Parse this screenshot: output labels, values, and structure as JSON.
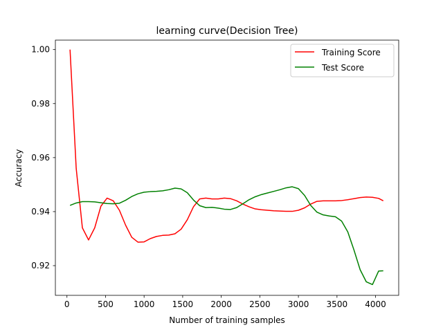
{
  "chart_data": {
    "type": "line",
    "title": "learning curve(Decision Tree)",
    "xlabel": "Number of training samples",
    "ylabel": "Accuracy",
    "xlim": [
      -150,
      4300
    ],
    "ylim": [
      0.909,
      1.0035
    ],
    "xticks": [
      0,
      500,
      1000,
      1500,
      2000,
      2500,
      3000,
      3500,
      4000
    ],
    "yticks": [
      0.92,
      0.94,
      0.96,
      0.98,
      1.0
    ],
    "ytick_labels": [
      "0.92",
      "0.94",
      "0.96",
      "0.98",
      "1.00"
    ],
    "grid": false,
    "legend_position": "top-right",
    "series": [
      {
        "name": "Training Score",
        "color": "#ff0000",
        "x": [
          40,
          120,
          200,
          280,
          360,
          440,
          520,
          600,
          680,
          760,
          840,
          920,
          1000,
          1080,
          1160,
          1240,
          1320,
          1400,
          1480,
          1560,
          1640,
          1720,
          1800,
          1880,
          1960,
          2040,
          2120,
          2200,
          2280,
          2360,
          2440,
          2520,
          2600,
          2680,
          2760,
          2840,
          2920,
          3000,
          3080,
          3160,
          3240,
          3320,
          3400,
          3480,
          3560,
          3640,
          3720,
          3800,
          3880,
          3960,
          4040,
          4100
        ],
        "y": [
          1.0,
          0.956,
          0.934,
          0.9295,
          0.934,
          0.942,
          0.945,
          0.944,
          0.9405,
          0.935,
          0.9305,
          0.9287,
          0.9288,
          0.93,
          0.9308,
          0.9312,
          0.9313,
          0.9318,
          0.9335,
          0.937,
          0.9418,
          0.9447,
          0.945,
          0.9447,
          0.9447,
          0.945,
          0.9448,
          0.944,
          0.9428,
          0.9418,
          0.941,
          0.9407,
          0.9405,
          0.9403,
          0.9402,
          0.9401,
          0.9401,
          0.9405,
          0.9414,
          0.9428,
          0.9438,
          0.944,
          0.944,
          0.944,
          0.9441,
          0.9444,
          0.9448,
          0.9452,
          0.9454,
          0.9453,
          0.9449,
          0.944
        ]
      },
      {
        "name": "Test Score",
        "color": "#008000",
        "x": [
          40,
          120,
          200,
          280,
          360,
          440,
          520,
          600,
          680,
          760,
          840,
          920,
          1000,
          1080,
          1160,
          1240,
          1320,
          1400,
          1480,
          1560,
          1640,
          1720,
          1800,
          1880,
          1960,
          2040,
          2120,
          2200,
          2280,
          2360,
          2440,
          2520,
          2600,
          2680,
          2760,
          2840,
          2920,
          3000,
          3080,
          3160,
          3240,
          3320,
          3400,
          3480,
          3560,
          3640,
          3720,
          3800,
          3880,
          3960,
          4040,
          4100
        ],
        "y": [
          0.9423,
          0.9432,
          0.9437,
          0.9437,
          0.9436,
          0.9433,
          0.943,
          0.9429,
          0.9431,
          0.9442,
          0.9456,
          0.9466,
          0.9472,
          0.9474,
          0.9475,
          0.9477,
          0.9481,
          0.9487,
          0.9484,
          0.947,
          0.9443,
          0.9422,
          0.9415,
          0.9416,
          0.9413,
          0.9409,
          0.9408,
          0.9415,
          0.9429,
          0.9444,
          0.9455,
          0.9463,
          0.9469,
          0.9475,
          0.9481,
          0.9488,
          0.9492,
          0.9485,
          0.946,
          0.9423,
          0.9398,
          0.9388,
          0.9384,
          0.9381,
          0.9365,
          0.9325,
          0.9258,
          0.9185,
          0.914,
          0.913,
          0.918,
          0.9181
        ]
      }
    ]
  }
}
